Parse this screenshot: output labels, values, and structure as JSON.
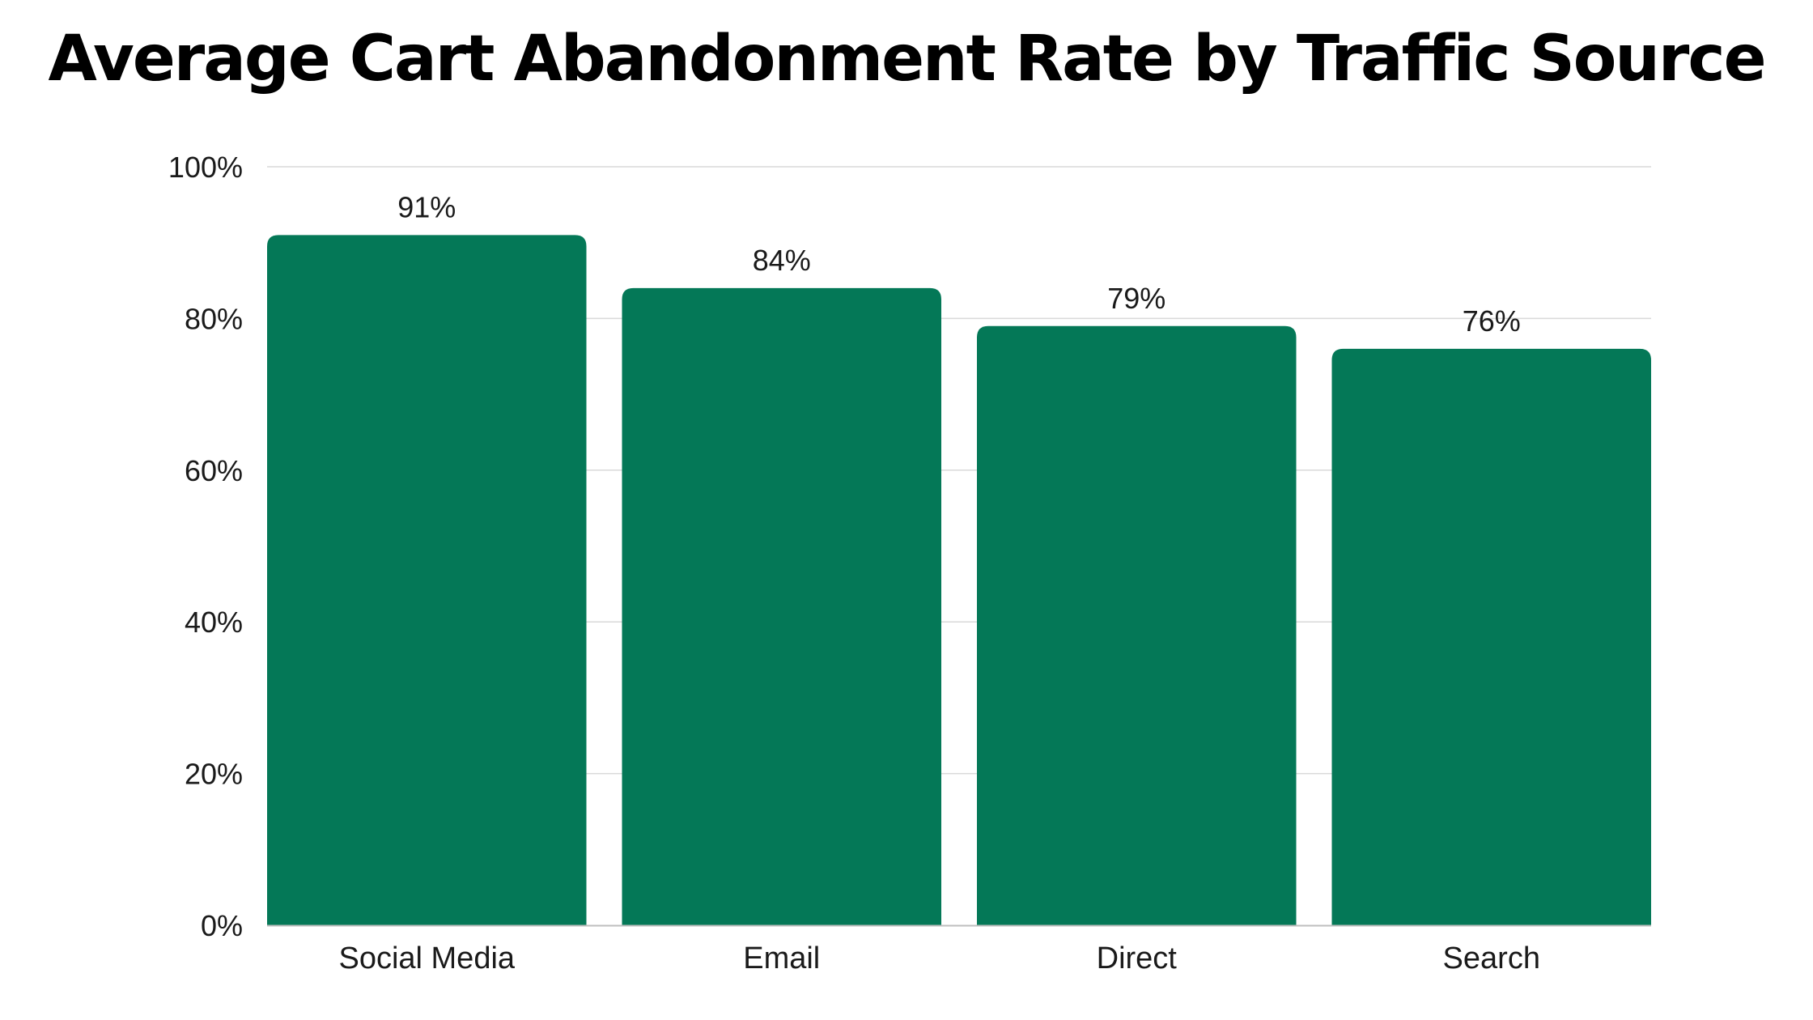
{
  "chart_data": {
    "type": "bar",
    "title": "Average Cart Abandonment Rate by Traffic Source",
    "xlabel": "",
    "ylabel": "",
    "categories": [
      "Social Media",
      "Email",
      "Direct",
      "Search"
    ],
    "values": [
      91,
      84,
      79,
      76
    ],
    "data_labels": [
      "91%",
      "84%",
      "79%",
      "76%"
    ],
    "ylim": [
      0,
      100
    ],
    "yticks": [
      0,
      20,
      40,
      60,
      80,
      100
    ],
    "ytick_labels": [
      "0%",
      "20%",
      "40%",
      "60%",
      "80%",
      "100%"
    ],
    "grid": true,
    "legend": "none",
    "colors": {
      "bar": "#047857",
      "grid": "#d9d9d9",
      "axis": "#bfbfbf",
      "text": "#1a1a1a"
    }
  }
}
